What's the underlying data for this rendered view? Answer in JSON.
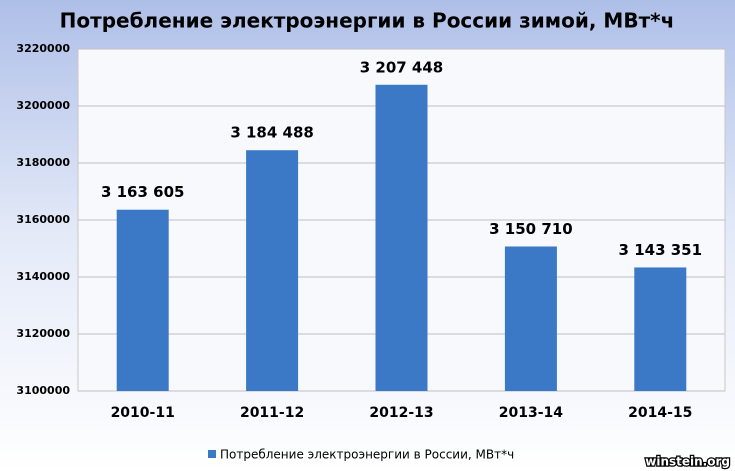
{
  "chart_data": {
    "type": "bar",
    "title": "Потребление электроэнергии в России зимой, МВт*ч",
    "categories": [
      "2010-11",
      "2011-12",
      "2012-13",
      "2013-14",
      "2014-15"
    ],
    "series": [
      {
        "name": "Потребление электроэнергии  в России, МВт*ч",
        "color": "#3b78c6",
        "values": [
          3163605,
          3184488,
          3207448,
          3150710,
          3143351
        ],
        "value_labels": [
          "3 163 605",
          "3 184 488",
          "3 207 448",
          "3 150 710",
          "3 143 351"
        ]
      }
    ],
    "ylim": [
      3100000,
      3220000
    ],
    "yticks": [
      3100000,
      3120000,
      3140000,
      3160000,
      3180000,
      3200000,
      3220000
    ],
    "grid": true,
    "legend": "bottom",
    "watermark": "winstein.org"
  }
}
